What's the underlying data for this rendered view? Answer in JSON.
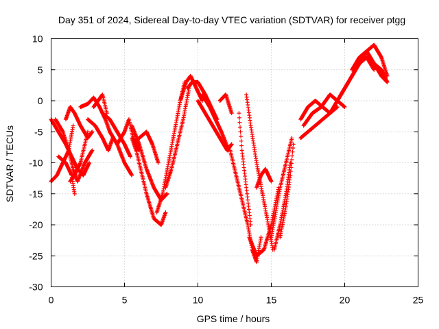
{
  "chart_data": {
    "type": "scatter",
    "title": "Day 351 of 2024, Sidereal Day-to-day VTEC variation (SDTVAR) for receiver ptgg",
    "xlabel": "GPS time / hours",
    "ylabel": "SDTVAR / TECUs",
    "xlim": [
      0,
      25
    ],
    "ylim": [
      -30,
      10
    ],
    "xticks": [
      "0",
      "5",
      "10",
      "15",
      "20",
      "25"
    ],
    "yticks": [
      "10",
      "5",
      "0",
      "-5",
      "-10",
      "-15",
      "-20",
      "-25",
      "-30"
    ],
    "grid": true,
    "marker": "+",
    "color": "#ff0000",
    "tracks": [
      {
        "x": [
          0.0,
          0.5,
          1.0,
          1.4,
          1.8,
          2.2,
          2.6
        ],
        "y": [
          -3,
          -5,
          -7,
          -9,
          -11,
          -12,
          -10
        ]
      },
      {
        "x": [
          0.0,
          0.4,
          0.8,
          1.2,
          1.5
        ],
        "y": [
          -13,
          -12,
          -10,
          -8,
          -4
        ]
      },
      {
        "x": [
          0.3,
          0.8,
          1.2,
          1.5,
          1.8,
          2.3,
          2.8
        ],
        "y": [
          -3,
          -5,
          -8,
          -11,
          -13,
          -10,
          -8
        ]
      },
      {
        "x": [
          0.5,
          1.0,
          1.4,
          1.6
        ],
        "y": [
          -9,
          -10,
          -12,
          -15
        ]
      },
      {
        "x": [
          1.0,
          1.3,
          1.6,
          2.0,
          2.5,
          2.8
        ],
        "y": [
          -3,
          -1,
          -2,
          -4,
          -6,
          -5
        ]
      },
      {
        "x": [
          1.3,
          1.6,
          2.0,
          2.5
        ],
        "y": [
          -13,
          -12,
          -10,
          -5
        ]
      },
      {
        "x": [
          2.0,
          2.5,
          2.9,
          3.3,
          3.7,
          4.0
        ],
        "y": [
          -1,
          -0.5,
          0.5,
          -1,
          -3,
          -5
        ]
      },
      {
        "x": [
          2.5,
          3.0,
          3.5,
          3.9,
          4.2
        ],
        "y": [
          -3,
          -4,
          -6,
          -8,
          -6
        ]
      },
      {
        "x": [
          2.9,
          3.2,
          3.5,
          3.8
        ],
        "y": [
          -1,
          0,
          1,
          -2
        ]
      },
      {
        "x": [
          3.5,
          4.0,
          4.5,
          5.0,
          5.4
        ],
        "y": [
          -2,
          -3,
          -5,
          -7,
          -9
        ]
      },
      {
        "x": [
          4.0,
          4.5,
          5.0,
          5.5
        ],
        "y": [
          -5,
          -7,
          -10,
          -12
        ]
      },
      {
        "x": [
          4.5,
          5.0,
          5.3,
          5.6,
          6.0
        ],
        "y": [
          -7,
          -5,
          -3,
          -6,
          -8
        ]
      },
      {
        "x": [
          5.5,
          5.8,
          6.2,
          6.5,
          7.0,
          7.5,
          7.8
        ],
        "y": [
          -6,
          -8,
          -12,
          -15,
          -19,
          -20,
          -18
        ]
      },
      {
        "x": [
          5.5,
          6.0,
          6.5,
          7.0,
          7.5,
          7.9
        ],
        "y": [
          -4,
          -7,
          -11,
          -14,
          -16,
          -15
        ]
      },
      {
        "x": [
          6.0,
          6.5,
          6.9,
          7.3
        ],
        "y": [
          -6,
          -5,
          -7,
          -10
        ]
      },
      {
        "x": [
          7.2,
          7.6,
          8.0,
          8.4,
          8.8,
          9.1
        ],
        "y": [
          -18,
          -15,
          -10,
          -5,
          0,
          3
        ]
      },
      {
        "x": [
          7.8,
          8.2,
          8.6,
          9.0,
          9.4
        ],
        "y": [
          -14,
          -11,
          -7,
          -3,
          2
        ]
      },
      {
        "x": [
          8.8,
          9.2,
          9.5,
          9.9,
          10.3
        ],
        "y": [
          0,
          3,
          4,
          2,
          0
        ]
      },
      {
        "x": [
          9.3,
          9.6,
          10.0,
          10.5,
          10.9,
          11.3
        ],
        "y": [
          2,
          3,
          3,
          1,
          -1,
          -3
        ]
      },
      {
        "x": [
          10.0,
          10.5,
          11.0,
          11.5,
          12.0,
          12.3
        ],
        "y": [
          0,
          -2,
          -4,
          -6,
          -8,
          -7
        ]
      },
      {
        "x": [
          10.3,
          10.8,
          11.2,
          11.6,
          12.1
        ],
        "y": [
          1,
          -1,
          -3,
          -5,
          -8
        ]
      },
      {
        "x": [
          11.5,
          11.9,
          12.3
        ],
        "y": [
          0,
          1,
          -2
        ]
      },
      {
        "x": [
          12.2,
          12.6,
          13.0,
          13.4,
          13.7,
          14.0,
          14.3
        ],
        "y": [
          -8,
          -12,
          -16,
          -20,
          -24,
          -26,
          -22
        ]
      },
      {
        "x": [
          12.8,
          13.0,
          13.3,
          13.6
        ],
        "y": [
          -2,
          -8,
          -14,
          -20
        ]
      },
      {
        "x": [
          13.3,
          13.6,
          14.0,
          14.4,
          14.8,
          15.1
        ],
        "y": [
          1,
          -4,
          -10,
          -15,
          -20,
          -24
        ]
      },
      {
        "x": [
          13.5,
          14.0,
          14.5,
          15.0,
          15.5
        ],
        "y": [
          -22,
          -25,
          -24,
          -20,
          -14
        ]
      },
      {
        "x": [
          14.0,
          14.3,
          14.6,
          15.0
        ],
        "y": [
          -14,
          -12,
          -11,
          -13
        ]
      },
      {
        "x": [
          15.0,
          15.3,
          15.6,
          16.0,
          16.4
        ],
        "y": [
          -22,
          -18,
          -14,
          -10,
          -6
        ]
      },
      {
        "x": [
          15.2,
          15.6,
          16.0,
          16.3
        ],
        "y": [
          -24,
          -20,
          -15,
          -10
        ]
      },
      {
        "x": [
          15.6,
          16.0,
          16.3,
          16.5
        ],
        "y": [
          -22,
          -17,
          -12,
          -7
        ]
      },
      {
        "x": [
          17.0,
          17.5,
          18.0,
          18.5,
          19.0,
          19.5
        ],
        "y": [
          -3,
          -1,
          0,
          -1,
          -2,
          -1
        ]
      },
      {
        "x": [
          17.0,
          17.5,
          18.0,
          18.5,
          19.0,
          19.5,
          20.0
        ],
        "y": [
          -6,
          -5,
          -4,
          -3,
          -2,
          0,
          2
        ]
      },
      {
        "x": [
          17.2,
          17.8,
          18.4,
          19.0,
          19.5,
          20.0
        ],
        "y": [
          -4,
          -2,
          -1,
          1,
          0,
          -1
        ]
      },
      {
        "x": [
          19.5,
          20.0,
          20.5,
          21.0,
          21.5,
          22.0
        ],
        "y": [
          0,
          2,
          4,
          6,
          7,
          5
        ]
      },
      {
        "x": [
          20.0,
          20.5,
          21.0,
          21.5,
          22.0,
          22.5,
          22.9
        ],
        "y": [
          2,
          4,
          6,
          8,
          9,
          7,
          4
        ]
      },
      {
        "x": [
          20.5,
          21.0,
          21.5,
          22.0,
          22.5,
          22.9
        ],
        "y": [
          5,
          7,
          8,
          6,
          4,
          3
        ]
      },
      {
        "x": [
          21.5,
          22.0,
          22.5,
          22.9
        ],
        "y": [
          7,
          6,
          5,
          3
        ]
      }
    ]
  }
}
